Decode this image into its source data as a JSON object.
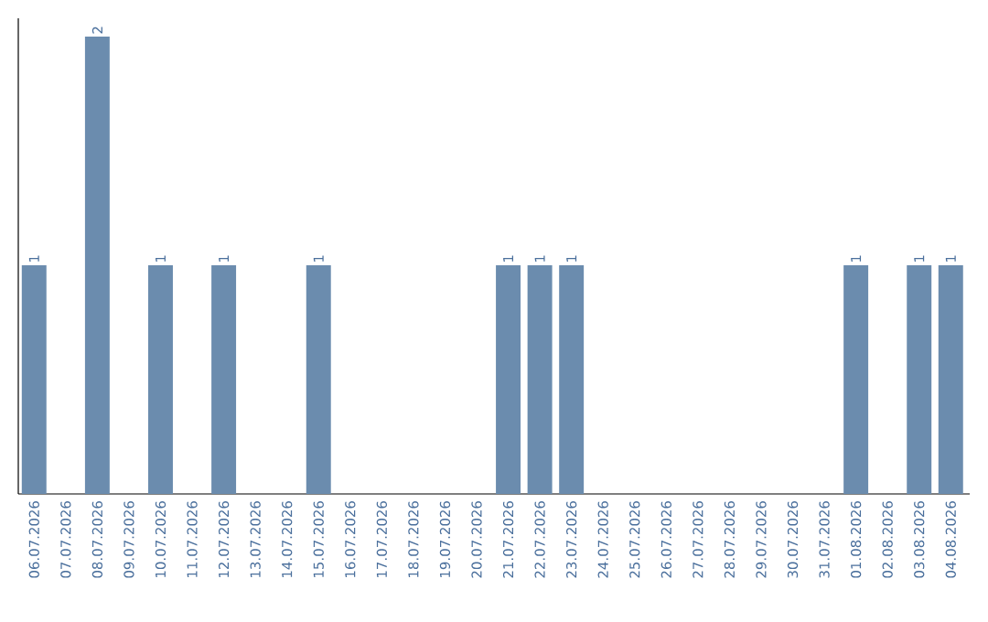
{
  "chart_data": {
    "type": "bar",
    "categories": [
      "06.07.2026",
      "07.07.2026",
      "08.07.2026",
      "09.07.2026",
      "10.07.2026",
      "11.07.2026",
      "12.07.2026",
      "13.07.2026",
      "14.07.2026",
      "15.07.2026",
      "16.07.2026",
      "17.07.2026",
      "18.07.2026",
      "19.07.2026",
      "20.07.2026",
      "21.07.2026",
      "22.07.2026",
      "23.07.2026",
      "24.07.2026",
      "25.07.2026",
      "26.07.2026",
      "27.07.2026",
      "28.07.2026",
      "29.07.2026",
      "30.07.2026",
      "31.07.2026",
      "01.08.2026",
      "02.08.2026",
      "03.08.2026",
      "04.08.2026"
    ],
    "values": [
      1,
      0,
      2,
      0,
      1,
      0,
      1,
      0,
      0,
      1,
      0,
      0,
      0,
      0,
      0,
      1,
      1,
      1,
      0,
      0,
      0,
      0,
      0,
      0,
      0,
      0,
      1,
      0,
      1,
      1
    ],
    "value_labels": [
      "1",
      null,
      "2",
      null,
      "1",
      null,
      "1",
      null,
      null,
      "1",
      null,
      null,
      null,
      null,
      null,
      "1",
      "1",
      "1",
      null,
      null,
      null,
      null,
      null,
      null,
      null,
      null,
      "1",
      null,
      "1",
      "1"
    ],
    "color": "#6b8cae",
    "ylim": [
      0,
      2.08
    ],
    "tick_labels": "x",
    "grid": false,
    "legend": false
  }
}
